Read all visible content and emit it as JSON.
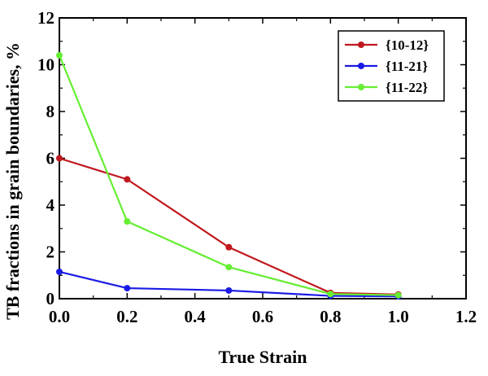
{
  "chart_data": {
    "type": "line",
    "xlabel": "True Strain",
    "ylabel": "TB fractions in grain boundaries, %",
    "xlim": [
      0.0,
      1.2
    ],
    "ylim": [
      0,
      12
    ],
    "xticks": [
      0.0,
      0.2,
      0.4,
      0.6,
      0.8,
      1.0,
      1.2
    ],
    "yticks": [
      0,
      2,
      4,
      6,
      8,
      10,
      12
    ],
    "xtick_labels": [
      "0.0",
      "0.2",
      "0.4",
      "0.6",
      "0.8",
      "1.0",
      "1.2"
    ],
    "ytick_labels": [
      "0",
      "2",
      "4",
      "6",
      "8",
      "10",
      "12"
    ],
    "grid": false,
    "legend_position": "top-right",
    "series": [
      {
        "name": "{10-12}",
        "color": "#c0181e",
        "x": [
          0.0,
          0.2,
          0.5,
          0.8,
          1.0
        ],
        "y": [
          6.0,
          5.1,
          2.2,
          0.25,
          0.18
        ]
      },
      {
        "name": "{11-21}",
        "color": "#1a1ae6",
        "x": [
          0.0,
          0.2,
          0.5,
          0.8,
          1.0
        ],
        "y": [
          1.15,
          0.45,
          0.35,
          0.12,
          0.1
        ]
      },
      {
        "name": "{11-22}",
        "color": "#66ee33",
        "x": [
          0.0,
          0.2,
          0.5,
          0.8,
          1.0
        ],
        "y": [
          10.4,
          3.3,
          1.35,
          0.2,
          0.15
        ]
      }
    ]
  }
}
